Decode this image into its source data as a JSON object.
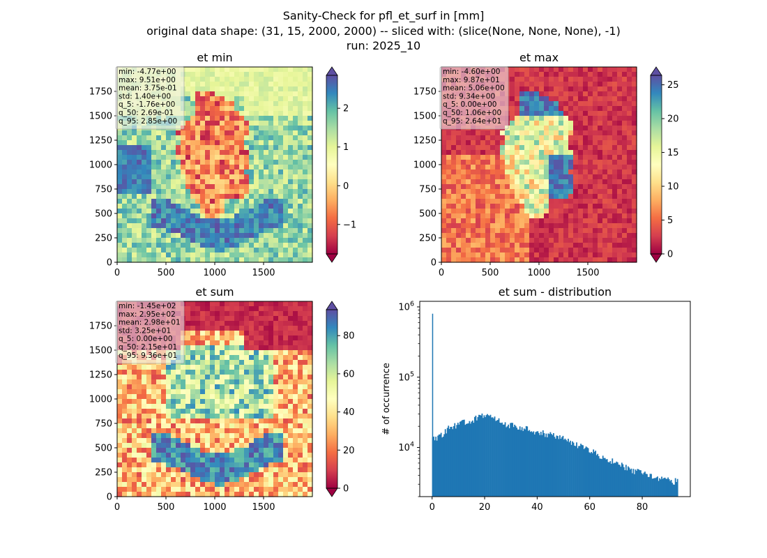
{
  "suptitle": {
    "line1": "Sanity-Check for pfl_et_surf in [mm]",
    "line2": "original data shape: (31, 15, 2000, 2000) -- sliced with: (slice(None, None, None), -1)",
    "line3": "run: 2025_10"
  },
  "colormap": "Spectral",
  "colormap_stops": [
    "#9e0142",
    "#d53e4f",
    "#f46d43",
    "#fdae61",
    "#fee08b",
    "#ffffbf",
    "#e6f598",
    "#abdda4",
    "#66c2a5",
    "#3288bd",
    "#5e4fa2"
  ],
  "chart_data": [
    {
      "type": "heatmap",
      "title": "et min",
      "xticks": [
        0,
        500,
        1000,
        1500
      ],
      "yticks": [
        0,
        250,
        500,
        750,
        1000,
        1250,
        1500,
        1750
      ],
      "xlim": [
        0,
        2000
      ],
      "ylim": [
        0,
        2000
      ],
      "colorbar": {
        "range": [
          -1.76,
          2.85
        ],
        "ticks": [
          -1,
          0,
          1,
          2
        ],
        "tick_labels": [
          "−1",
          "0",
          "1",
          "2"
        ],
        "extend": "both"
      },
      "stats": [
        "min: -4.77e+00",
        "max: 9.51e+00",
        "mean: 3.75e-01",
        "std: 1.40e+00",
        "q_5: -1.76e+00",
        "q_50: 2.69e-01",
        "q_95: 2.85e+00"
      ]
    },
    {
      "type": "heatmap",
      "title": "et max",
      "xticks": [
        0,
        500,
        1000,
        1500
      ],
      "yticks": [
        0,
        250,
        500,
        750,
        1000,
        1250,
        1500,
        1750
      ],
      "xlim": [
        0,
        2000
      ],
      "ylim": [
        0,
        2000
      ],
      "colorbar": {
        "range": [
          0,
          26.4
        ],
        "ticks": [
          0,
          5,
          10,
          15,
          20,
          25
        ],
        "tick_labels": [
          "0",
          "5",
          "10",
          "15",
          "20",
          "25"
        ],
        "extend": "both"
      },
      "stats": [
        "min: -4.60e+00",
        "max: 9.87e+01",
        "mean: 5.06e+00",
        "std: 9.34e+00",
        "q_5: 0.00e+00",
        "q_50: 1.06e+00",
        "q_95: 2.64e+01"
      ]
    },
    {
      "type": "heatmap",
      "title": "et sum",
      "xticks": [
        0,
        500,
        1000,
        1500
      ],
      "yticks": [
        0,
        250,
        500,
        750,
        1000,
        1250,
        1500,
        1750
      ],
      "xlim": [
        0,
        2000
      ],
      "ylim": [
        0,
        2000
      ],
      "colorbar": {
        "range": [
          0,
          93.6
        ],
        "ticks": [
          0,
          20,
          40,
          60,
          80
        ],
        "tick_labels": [
          "0",
          "20",
          "40",
          "60",
          "80"
        ],
        "extend": "both"
      },
      "stats": [
        "min: -1.45e+02",
        "max: 2.95e+02",
        "mean: 2.98e+01",
        "std: 3.25e+01",
        "q_5: 0.00e+00",
        "q_50: 2.15e+01",
        "q_95: 9.36e+01"
      ]
    },
    {
      "type": "bar",
      "title": "et sum - distribution",
      "ylabel": "# of occurrence",
      "xlabel": "",
      "yscale": "log",
      "xlim": [
        -4.7,
        98.3
      ],
      "ylim": [
        2000,
        1200000
      ],
      "xticks": [
        0,
        20,
        40,
        60,
        80
      ],
      "yticks": [
        10000,
        100000,
        1000000
      ],
      "ytick_labels": [
        {
          "base": "10",
          "exp": "4"
        },
        {
          "base": "10",
          "exp": "5"
        },
        {
          "base": "10",
          "exp": "6"
        }
      ],
      "color": "#1f77b4",
      "spike": {
        "x": 0,
        "value": 800000
      },
      "bin_width": 0.4,
      "bins": [
        {
          "x": 0,
          "value": 13000
        },
        {
          "x": 2,
          "value": 13500
        },
        {
          "x": 4,
          "value": 16000
        },
        {
          "x": 6,
          "value": 18500
        },
        {
          "x": 8,
          "value": 20500
        },
        {
          "x": 10,
          "value": 21500
        },
        {
          "x": 12,
          "value": 22500
        },
        {
          "x": 14,
          "value": 24000
        },
        {
          "x": 16,
          "value": 25500
        },
        {
          "x": 18,
          "value": 27000
        },
        {
          "x": 20,
          "value": 28000
        },
        {
          "x": 22,
          "value": 26500
        },
        {
          "x": 24,
          "value": 25000
        },
        {
          "x": 26,
          "value": 23500
        },
        {
          "x": 28,
          "value": 21500
        },
        {
          "x": 30,
          "value": 20500
        },
        {
          "x": 32,
          "value": 19500
        },
        {
          "x": 34,
          "value": 19000
        },
        {
          "x": 36,
          "value": 18500
        },
        {
          "x": 38,
          "value": 17500
        },
        {
          "x": 40,
          "value": 16500
        },
        {
          "x": 42,
          "value": 16000
        },
        {
          "x": 44,
          "value": 15500
        },
        {
          "x": 46,
          "value": 15000
        },
        {
          "x": 48,
          "value": 14000
        },
        {
          "x": 50,
          "value": 13000
        },
        {
          "x": 52,
          "value": 12000
        },
        {
          "x": 54,
          "value": 11500
        },
        {
          "x": 56,
          "value": 10500
        },
        {
          "x": 58,
          "value": 9800
        },
        {
          "x": 60,
          "value": 9000
        },
        {
          "x": 62,
          "value": 8300
        },
        {
          "x": 64,
          "value": 7600
        },
        {
          "x": 66,
          "value": 7000
        },
        {
          "x": 68,
          "value": 6400
        },
        {
          "x": 70,
          "value": 6000
        },
        {
          "x": 72,
          "value": 5500
        },
        {
          "x": 74,
          "value": 5100
        },
        {
          "x": 76,
          "value": 4800
        },
        {
          "x": 78,
          "value": 4500
        },
        {
          "x": 80,
          "value": 4200
        },
        {
          "x": 82,
          "value": 4000
        },
        {
          "x": 84,
          "value": 3800
        },
        {
          "x": 86,
          "value": 3600
        },
        {
          "x": 88,
          "value": 3500
        },
        {
          "x": 90,
          "value": 3400
        },
        {
          "x": 92,
          "value": 3300
        }
      ]
    }
  ]
}
